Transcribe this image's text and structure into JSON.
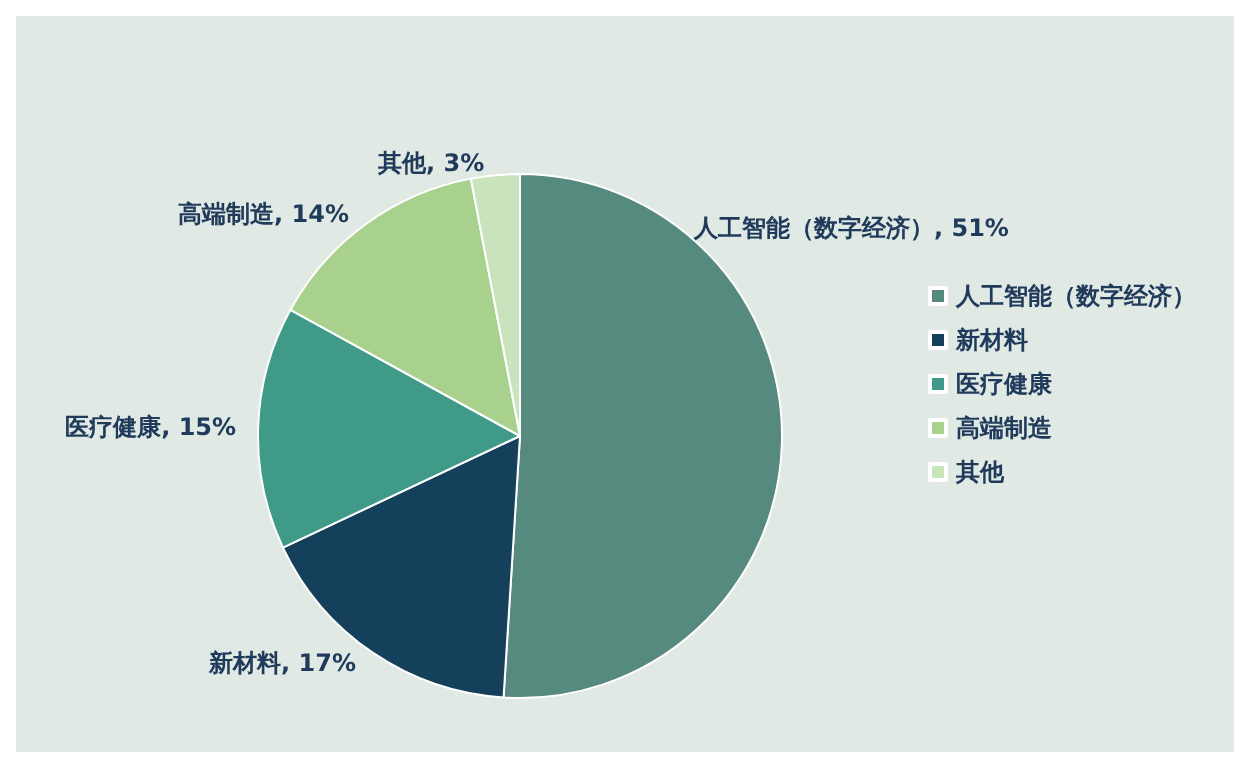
{
  "chart_data": {
    "type": "pie",
    "categories": [
      "人工智能（数字经济）",
      "新材料",
      "医疗健康",
      "高端制造",
      "其他"
    ],
    "values": [
      51,
      17,
      15,
      14,
      3
    ],
    "colors": [
      "#568a7e",
      "#15405c",
      "#3f9a88",
      "#a8d18e",
      "#c9e4bd"
    ],
    "value_labels": [
      "人工智能（数字经济）, 51%",
      "新材料, 17%",
      "医疗健康, 15%",
      "高端制造, 14%",
      "其他, 3%"
    ],
    "legend": "right"
  }
}
